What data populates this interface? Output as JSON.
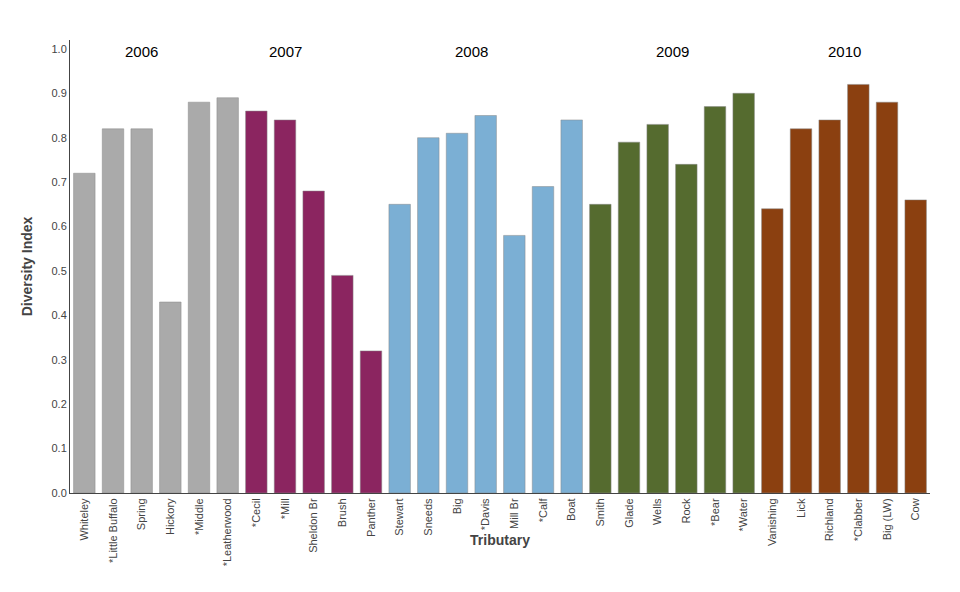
{
  "chart_data": {
    "type": "bar",
    "xlabel": "Tributary",
    "ylabel": "Diversity Index",
    "categories": [
      "Whiteley",
      "*Little Buffalo",
      "Spring",
      "Hickory",
      "*Middle",
      "*Leatherwood",
      "*Cecil",
      "*Mill",
      "Sheldon Br",
      "Brush",
      "Panther",
      "Stewart",
      "Sneeds",
      "Big",
      "*Davis",
      "Mill Br",
      "*Calf",
      "Boat",
      "Smith",
      "Glade",
      "Wells",
      "Rock",
      "*Bear",
      "*Water",
      "Vanishing",
      "Lick",
      "Richland",
      "*Clabber",
      "Big (LW)",
      "Cow"
    ],
    "values": [
      0.72,
      0.82,
      0.82,
      0.43,
      0.88,
      0.89,
      0.86,
      0.84,
      0.68,
      0.49,
      0.32,
      0.65,
      0.8,
      0.81,
      0.85,
      0.58,
      0.69,
      0.84,
      0.65,
      0.79,
      0.83,
      0.74,
      0.87,
      0.9,
      0.64,
      0.82,
      0.84,
      0.92,
      0.88,
      0.66
    ],
    "colors": [
      "#AAAAAA",
      "#AAAAAA",
      "#AAAAAA",
      "#AAAAAA",
      "#AAAAAA",
      "#AAAAAA",
      "#8B2560",
      "#8B2560",
      "#8B2560",
      "#8B2560",
      "#8B2560",
      "#7BAFD4",
      "#7BAFD4",
      "#7BAFD4",
      "#7BAFD4",
      "#7BAFD4",
      "#7BAFD4",
      "#7BAFD4",
      "#556B2F",
      "#556B2F",
      "#556B2F",
      "#556B2F",
      "#556B2F",
      "#556B2F",
      "#8B4010",
      "#8B4010",
      "#8B4010",
      "#8B4010",
      "#8B4010",
      "#8B4010"
    ],
    "annotations": [
      {
        "text": "2006",
        "x": 2.0,
        "y": 0.97
      },
      {
        "text": "2007",
        "x": 7.0,
        "y": 0.97
      },
      {
        "text": "2008",
        "x": 13.5,
        "y": 0.97
      },
      {
        "text": "2009",
        "x": 20.5,
        "y": 0.97
      },
      {
        "text": "2010",
        "x": 26.5,
        "y": 0.97
      }
    ],
    "ylim": [
      0.0,
      1.02
    ],
    "yticks": [
      {
        "value": 0.0,
        "label": "0.0"
      },
      0.1,
      0.2,
      0.3,
      0.4,
      0.5,
      0.6,
      0.7,
      0.8,
      0.9,
      {
        "value": 1.0,
        "label": "1.0"
      }
    ],
    "grid": false
  }
}
